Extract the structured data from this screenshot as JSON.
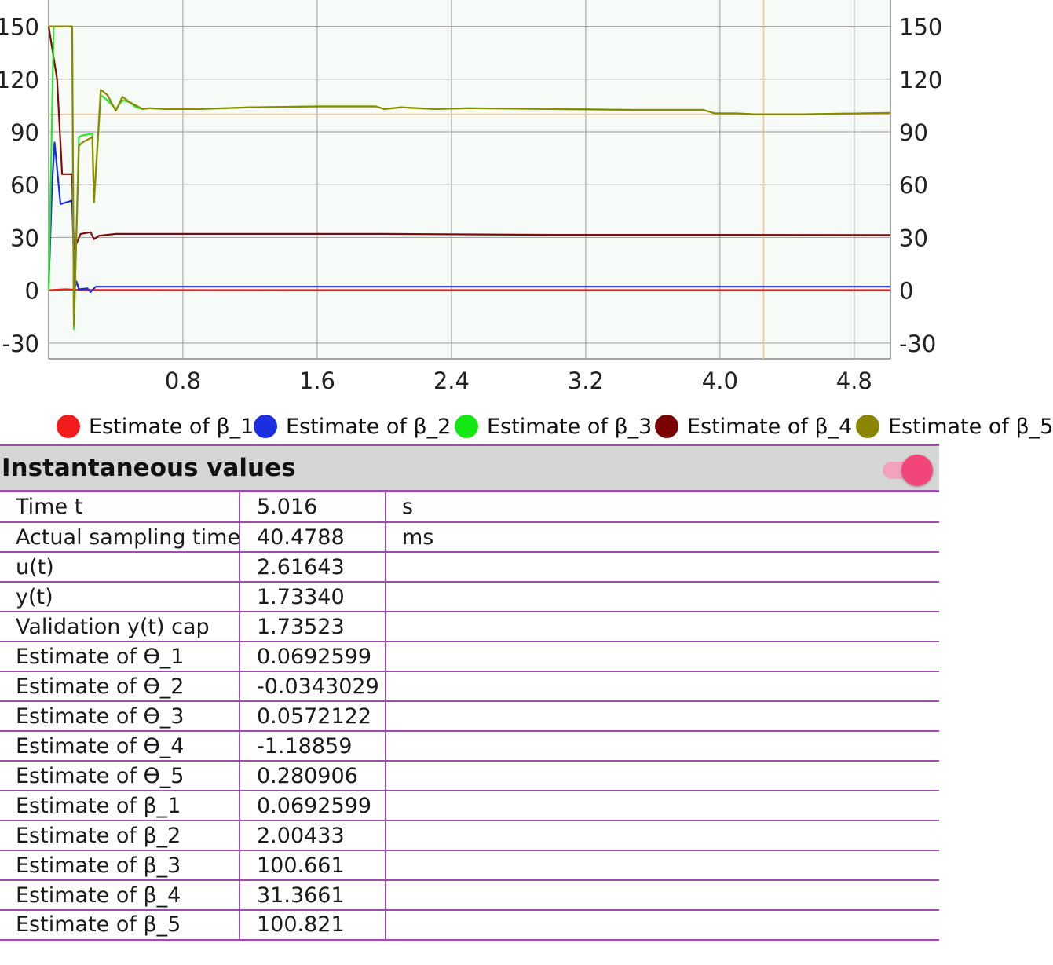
{
  "chart_data": {
    "type": "line",
    "x_ticks": [
      "0.8",
      "1.6",
      "2.4",
      "3.2",
      "4.0",
      "4.8"
    ],
    "y_ticks": [
      "150",
      "120",
      "90",
      "60",
      "30",
      "0",
      "-30"
    ],
    "xlim": [
      0,
      5.016
    ],
    "ylim": [
      -39,
      165
    ],
    "grid": true,
    "reference_line_y": 100,
    "reference_line_x": 4.26,
    "legend_position": "bottom",
    "series": [
      {
        "name": "Estimate of β_1",
        "color": "#e3231c",
        "x": [
          0,
          0.1,
          0.15,
          0.2,
          0.5,
          2.0,
          3.5,
          5.016
        ],
        "y": [
          0,
          0.5,
          0.3,
          0.1,
          0.1,
          0.07,
          0.07,
          0.07
        ]
      },
      {
        "name": "Estimate of β_2",
        "color": "#1a2fd0",
        "x": [
          0,
          0.02,
          0.035,
          0.07,
          0.14,
          0.155,
          0.165,
          0.18,
          0.23,
          0.25,
          0.28,
          0.32,
          0.4,
          0.6,
          1.0,
          2.0,
          3.0,
          4.0,
          5.016
        ],
        "y": [
          2,
          60,
          84,
          49,
          51,
          1,
          5,
          0.5,
          1,
          -1,
          2,
          2,
          2,
          2,
          2,
          2,
          2,
          2,
          2.0
        ]
      },
      {
        "name": "Estimate of β_3",
        "color": "#2ee82e",
        "x": [
          0,
          0.03,
          0.14,
          0.15,
          0.18,
          0.2,
          0.26,
          0.27,
          0.31,
          0.35,
          0.4,
          0.44,
          0.48,
          0.52,
          0.56,
          0.6,
          0.7,
          0.9,
          1.2,
          1.6,
          1.95,
          2.0,
          2.1,
          2.3,
          2.5,
          3.0,
          3.5,
          3.9,
          3.97,
          4.1,
          4.2,
          4.5,
          5.016
        ],
        "y": [
          0,
          150,
          150,
          -22,
          87,
          88,
          89,
          50,
          111,
          108,
          103,
          108,
          107,
          104,
          103,
          103.5,
          103,
          103,
          104,
          104.5,
          104.5,
          103,
          104,
          103,
          103.5,
          103,
          102.5,
          102.5,
          100.5,
          100.5,
          100,
          100,
          100.661
        ]
      },
      {
        "name": "Estimate of β_4",
        "color": "#7d0d0d",
        "x": [
          0,
          0.05,
          0.08,
          0.14,
          0.15,
          0.19,
          0.25,
          0.27,
          0.3,
          0.4,
          1.0,
          2.0,
          3.0,
          4.0,
          5.016
        ],
        "y": [
          150,
          120,
          66,
          66,
          23,
          32,
          33,
          29,
          31,
          32,
          32,
          32,
          31.5,
          31.5,
          31.37
        ]
      },
      {
        "name": "Estimate of β_5",
        "color": "#8c8a00",
        "x": [
          0,
          0.02,
          0.14,
          0.15,
          0.18,
          0.2,
          0.26,
          0.27,
          0.31,
          0.35,
          0.4,
          0.44,
          0.48,
          0.52,
          0.56,
          0.6,
          0.7,
          0.9,
          1.2,
          1.6,
          1.95,
          2.0,
          2.1,
          2.3,
          2.5,
          3.0,
          3.5,
          3.9,
          3.97,
          4.1,
          4.2,
          4.5,
          5.016
        ],
        "y": [
          150,
          150,
          150,
          -20,
          82,
          84,
          87,
          50,
          114,
          111,
          102,
          110,
          107,
          105,
          103,
          103.5,
          103,
          103,
          104,
          104.5,
          104.5,
          103,
          104,
          103,
          103.5,
          103,
          102.5,
          102.5,
          100.5,
          100.5,
          100,
          100,
          100.821
        ]
      }
    ]
  },
  "legend": [
    {
      "label": "Estimate of β_1",
      "color": "#f21c1c"
    },
    {
      "label": "Estimate of β_2",
      "color": "#1b2fe0"
    },
    {
      "label": "Estimate of β_3",
      "color": "#14e814"
    },
    {
      "label": "Estimate of β_4",
      "color": "#7a0000"
    },
    {
      "label": "Estimate of β_5",
      "color": "#8a8600"
    }
  ],
  "section": {
    "title": "Instantaneous values",
    "toggle_on": true
  },
  "rows": [
    {
      "label": "Time t",
      "value": "5.016",
      "unit": "s"
    },
    {
      "label": "Actual sampling time",
      "value": "40.4788",
      "unit": "ms"
    },
    {
      "label": "u(t)",
      "value": "2.61643",
      "unit": ""
    },
    {
      "label": "y(t)",
      "value": "1.73340",
      "unit": ""
    },
    {
      "label": "Validation y(t) cap",
      "value": "1.73523",
      "unit": ""
    },
    {
      "label": "Estimate of ϴ_1",
      "value": "0.0692599",
      "unit": ""
    },
    {
      "label": "Estimate of ϴ_2",
      "value": "-0.0343029",
      "unit": ""
    },
    {
      "label": "Estimate of ϴ_3",
      "value": "0.0572122",
      "unit": ""
    },
    {
      "label": "Estimate of ϴ_4",
      "value": "-1.18859",
      "unit": ""
    },
    {
      "label": "Estimate of ϴ_5",
      "value": "0.280906",
      "unit": ""
    },
    {
      "label": "Estimate of β_1",
      "value": "0.0692599",
      "unit": ""
    },
    {
      "label": "Estimate of β_2",
      "value": "2.00433",
      "unit": ""
    },
    {
      "label": "Estimate of β_3",
      "value": "100.661",
      "unit": ""
    },
    {
      "label": "Estimate of β_4",
      "value": "31.3661",
      "unit": ""
    },
    {
      "label": "Estimate of β_5",
      "value": "100.821",
      "unit": ""
    }
  ]
}
